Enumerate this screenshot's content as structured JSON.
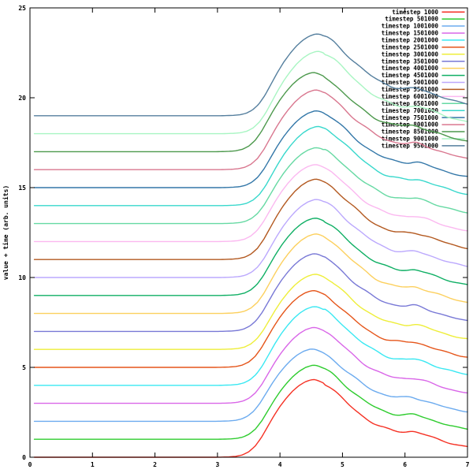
{
  "chart_data": {
    "type": "line",
    "title": "",
    "xlabel": "",
    "ylabel": "value + time (arb. units)",
    "xlim": [
      0,
      7
    ],
    "ylim": [
      0,
      25
    ],
    "xticks": [
      0,
      1,
      2,
      3,
      4,
      5,
      6,
      7
    ],
    "yticks": [
      0,
      5,
      10,
      15,
      20,
      25
    ],
    "grid": false,
    "legend_position": "top-right",
    "border_box": true,
    "axis_color": "#000000",
    "x_data_start": 0.07,
    "x_data_end": 7.0,
    "base_profile": [
      [
        0.07,
        0
      ],
      [
        0.5,
        0
      ],
      [
        1.0,
        0
      ],
      [
        1.5,
        0
      ],
      [
        2.0,
        0
      ],
      [
        2.5,
        0
      ],
      [
        2.8,
        0
      ],
      [
        3.0,
        0
      ],
      [
        3.1,
        0.002
      ],
      [
        3.2,
        0.005
      ],
      [
        3.3,
        0.012
      ],
      [
        3.4,
        0.03
      ],
      [
        3.5,
        0.07
      ],
      [
        3.6,
        0.14
      ],
      [
        3.7,
        0.25
      ],
      [
        3.8,
        0.39
      ],
      [
        3.9,
        0.53
      ],
      [
        4.0,
        0.655
      ],
      [
        4.1,
        0.76
      ],
      [
        4.2,
        0.85
      ],
      [
        4.3,
        0.92
      ],
      [
        4.4,
        0.97
      ],
      [
        4.5,
        0.998
      ],
      [
        4.55,
        1.0
      ],
      [
        4.6,
        0.99
      ],
      [
        4.7,
        0.955
      ],
      [
        4.8,
        0.9
      ],
      [
        4.9,
        0.83
      ],
      [
        5.0,
        0.755
      ],
      [
        5.1,
        0.68
      ],
      [
        5.2,
        0.61
      ],
      [
        5.3,
        0.545
      ],
      [
        5.4,
        0.487
      ],
      [
        5.5,
        0.437
      ],
      [
        5.6,
        0.397
      ],
      [
        5.7,
        0.366
      ],
      [
        5.8,
        0.345
      ],
      [
        5.9,
        0.334
      ],
      [
        6.0,
        0.33
      ],
      [
        6.05,
        0.332
      ],
      [
        6.1,
        0.334
      ],
      [
        6.15,
        0.33
      ],
      [
        6.2,
        0.32
      ],
      [
        6.3,
        0.295
      ],
      [
        6.4,
        0.266
      ],
      [
        6.5,
        0.238
      ],
      [
        6.6,
        0.212
      ],
      [
        6.7,
        0.188
      ],
      [
        6.8,
        0.166
      ],
      [
        6.9,
        0.148
      ],
      [
        7.0,
        0.135
      ]
    ],
    "series": [
      {
        "label": "timestep 1000",
        "color": "#f53124",
        "offset": 0,
        "amplitude": 4.32,
        "x_shift": 0.0
      },
      {
        "label": "timestep 501000",
        "color": "#2ecc2e",
        "offset": 1,
        "amplitude": 4.12,
        "x_shift": 0.01
      },
      {
        "label": "timestep 1001000",
        "color": "#6cabef",
        "offset": 2,
        "amplitude": 4.02,
        "x_shift": -0.02
      },
      {
        "label": "timestep 1501000",
        "color": "#d966e8",
        "offset": 3,
        "amplitude": 4.22,
        "x_shift": 0.01
      },
      {
        "label": "timestep 2001000",
        "color": "#3ae8f2",
        "offset": 4,
        "amplitude": 4.38,
        "x_shift": 0.02
      },
      {
        "label": "timestep 2501000",
        "color": "#e5551a",
        "offset": 5,
        "amplitude": 4.27,
        "x_shift": 0.0
      },
      {
        "label": "timestep 3001000",
        "color": "#eeee3a",
        "offset": 6,
        "amplitude": 4.18,
        "x_shift": 0.03
      },
      {
        "label": "timestep 3501000",
        "color": "#7878d6",
        "offset": 7,
        "amplitude": 4.32,
        "x_shift": 0.02
      },
      {
        "label": "timestep 4001000",
        "color": "#fcd05e",
        "offset": 8,
        "amplitude": 4.42,
        "x_shift": 0.04
      },
      {
        "label": "timestep 4501000",
        "color": "#0faf64",
        "offset": 9,
        "amplitude": 4.3,
        "x_shift": 0.03
      },
      {
        "label": "timestep 5001000",
        "color": "#bba8fd",
        "offset": 10,
        "amplitude": 4.34,
        "x_shift": 0.05
      },
      {
        "label": "timestep 5501000",
        "color": "#b35920",
        "offset": 11,
        "amplitude": 4.47,
        "x_shift": 0.04
      },
      {
        "label": "timestep 6001000",
        "color": "#fbb8f0",
        "offset": 12,
        "amplitude": 4.28,
        "x_shift": 0.03
      },
      {
        "label": "timestep 6501000",
        "color": "#66d9a3",
        "offset": 13,
        "amplitude": 4.22,
        "x_shift": 0.05
      },
      {
        "label": "timestep 7001000",
        "color": "#38d8cc",
        "offset": 14,
        "amplitude": 4.4,
        "x_shift": 0.07
      },
      {
        "label": "timestep 7501000",
        "color": "#3377a8",
        "offset": 15,
        "amplitude": 4.27,
        "x_shift": 0.05
      },
      {
        "label": "timestep 8001000",
        "color": "#d9778f",
        "offset": 16,
        "amplitude": 4.43,
        "x_shift": 0.04
      },
      {
        "label": "timestep 8501000",
        "color": "#4d994d",
        "offset": 17,
        "amplitude": 4.4,
        "x_shift": 0.0
      },
      {
        "label": "timestep 9001000",
        "color": "#a8f5c2",
        "offset": 18,
        "amplitude": 4.58,
        "x_shift": 0.07
      },
      {
        "label": "timestep 9501000",
        "color": "#557f9e",
        "offset": 19,
        "amplitude": 4.55,
        "x_shift": 0.06
      }
    ]
  }
}
